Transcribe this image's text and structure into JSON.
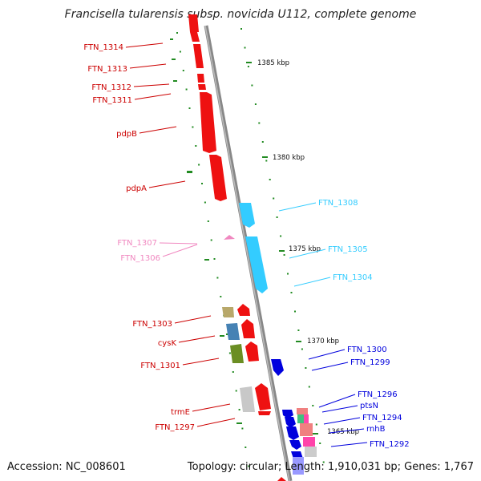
{
  "title": "Francisella tularensis subsp. novicida U112, complete genome",
  "footer": {
    "accession": "Accession: NC_008601",
    "summary": "Topology: circular; Length: 1,910,031 bp; Genes: 1,767"
  },
  "scale_labels": [
    "1385 kbp",
    "1380 kbp",
    "1375 kbp",
    "1370 kbp",
    "1365 kbp"
  ],
  "colors": {
    "backbone": "#888888",
    "red_genes": "#ee1111",
    "red_labels": "#cc0000",
    "pink_genes": "#f088c0",
    "cyan_genes": "#33ccff",
    "blue_genes": "#0000dd",
    "tick": "#228b22"
  },
  "labels_left": [
    "FTN_1314",
    "FTN_1313",
    "FTN_1312",
    "FTN_1311",
    "pdpB",
    "pdpA",
    "FTN_1307",
    "FTN_1306",
    "FTN_1303",
    "cysK",
    "FTN_1301",
    "trmE",
    "FTN_1297"
  ],
  "labels_right": [
    "FTN_1308",
    "FTN_1305",
    "FTN_1304",
    "FTN_1300",
    "FTN_1299",
    "FTN_1296",
    "ptsN",
    "FTN_1294",
    "rnhB",
    "FTN_1292"
  ]
}
